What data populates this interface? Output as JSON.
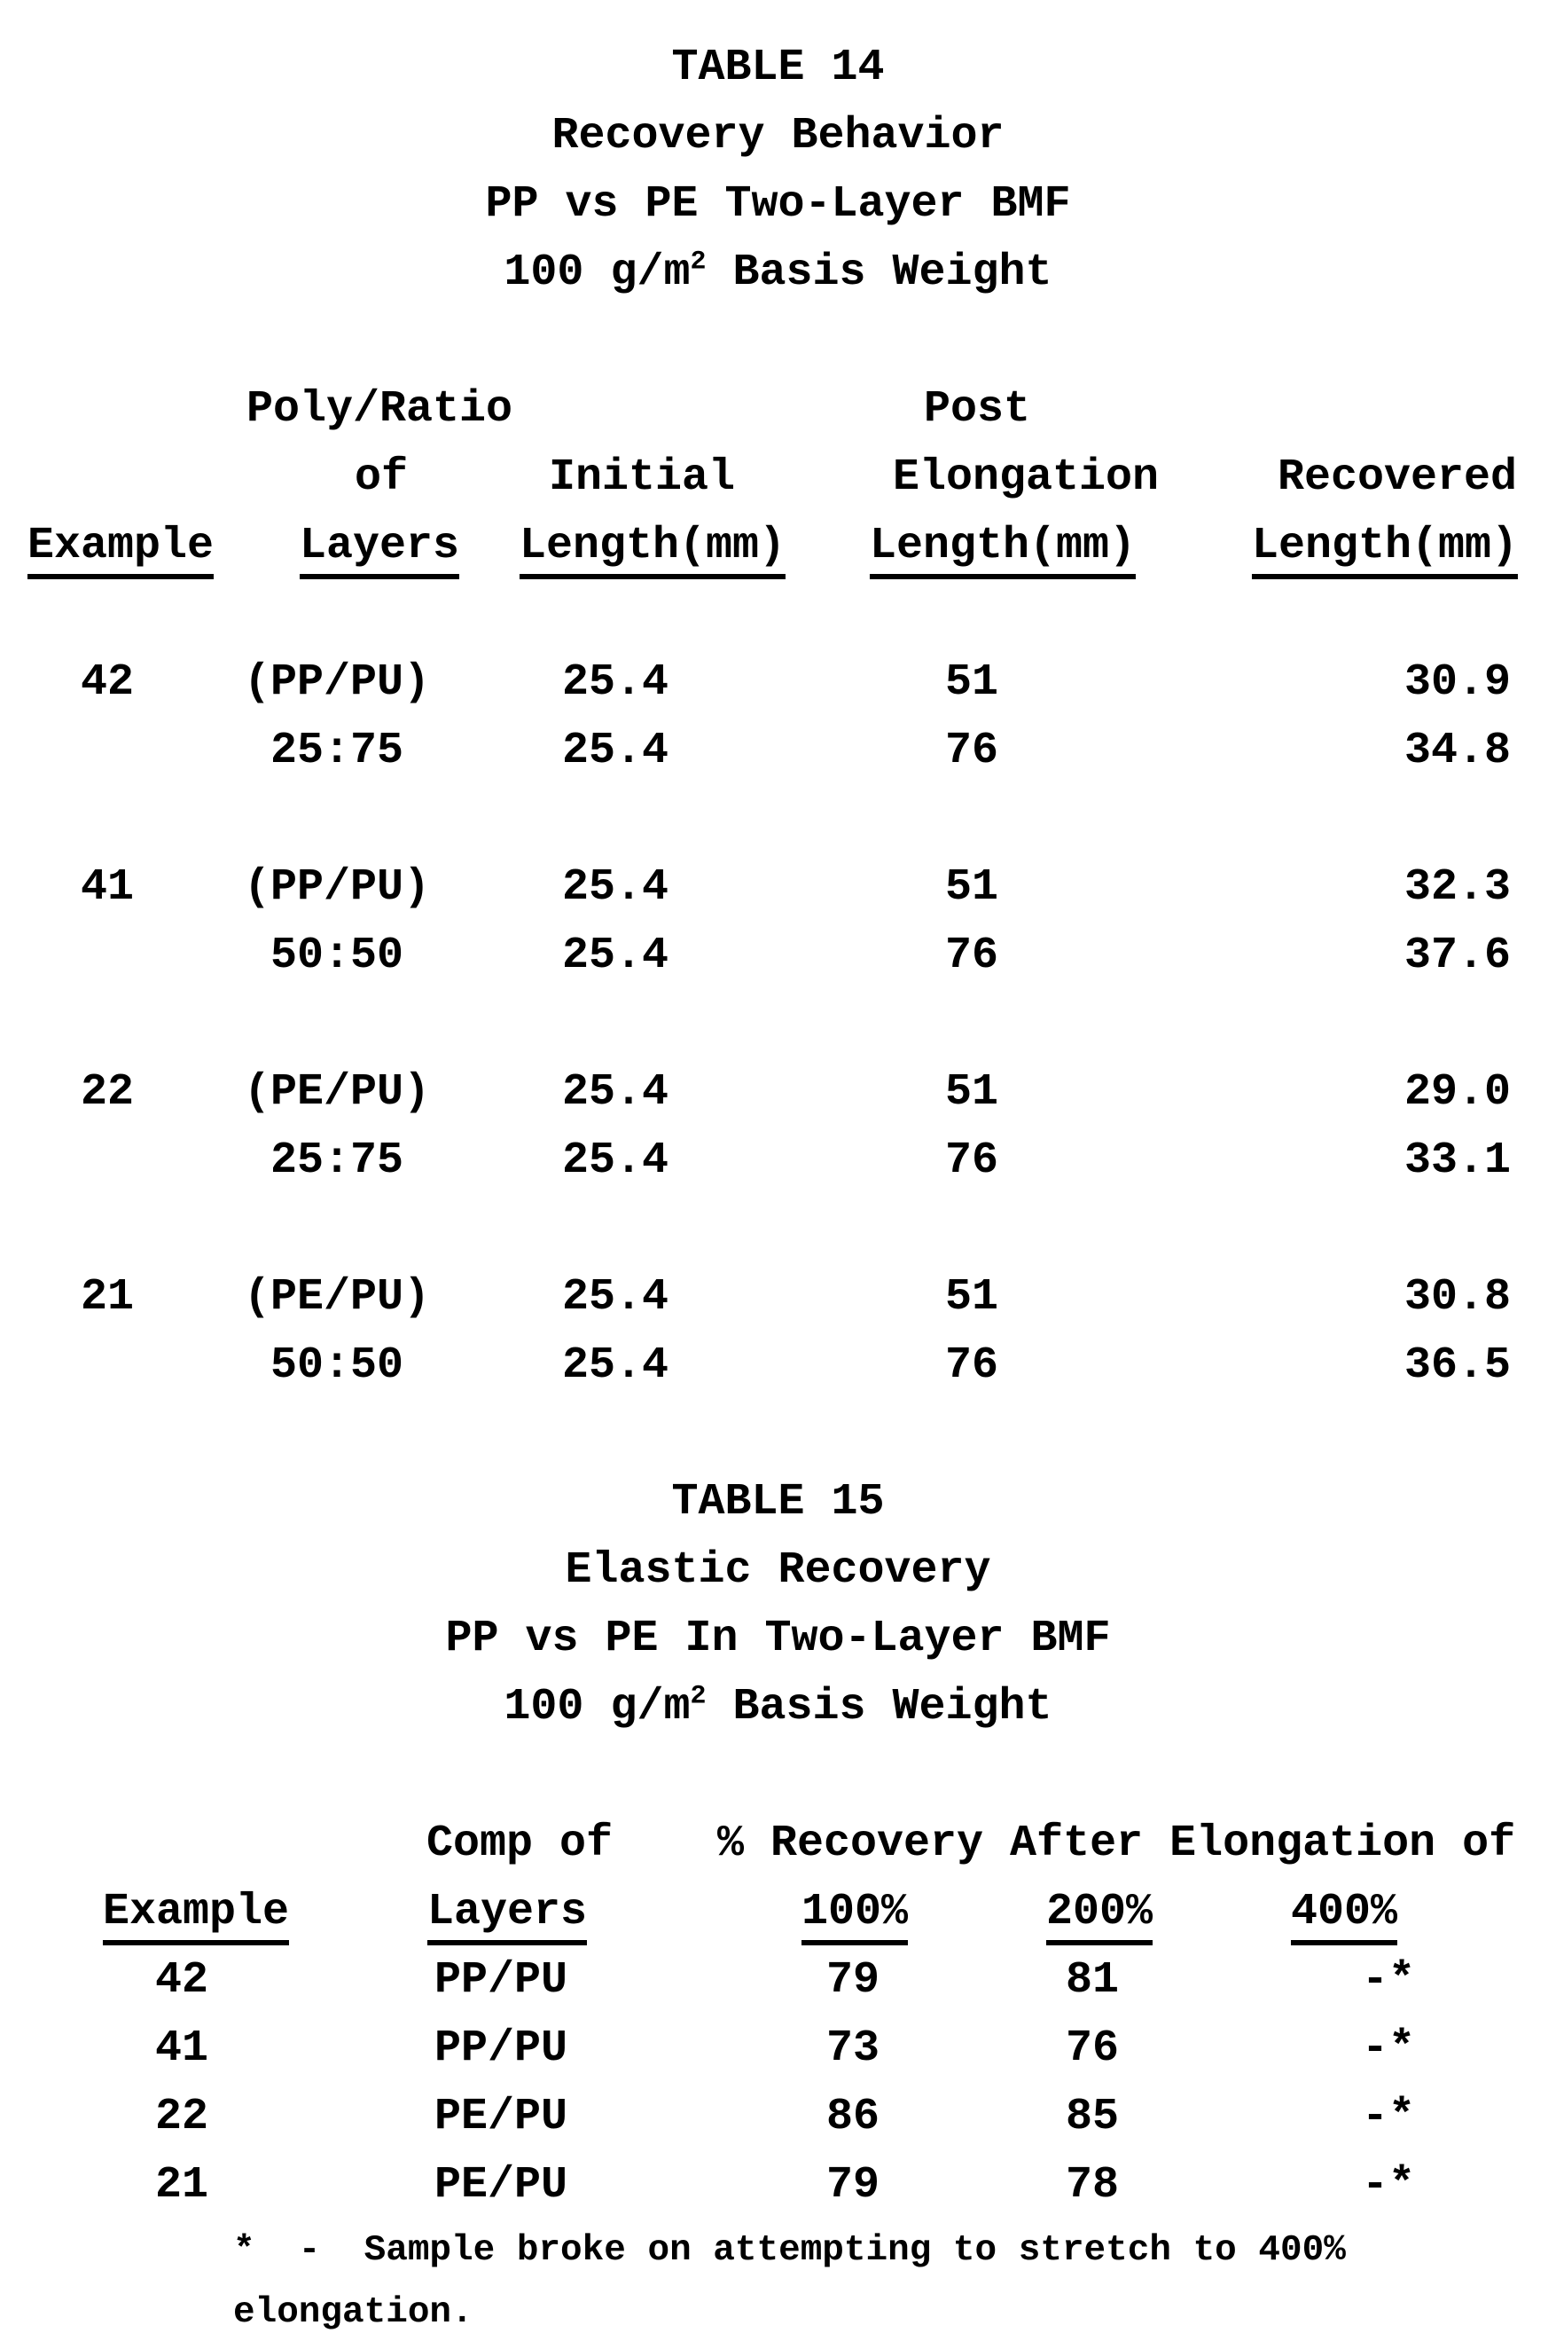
{
  "table14": {
    "title": "TABLE 14",
    "subtitle1": "Recovery Behavior",
    "subtitle2": "PP vs PE Two-Layer BMF",
    "basis_weight_prefix": "100 g/m",
    "basis_weight_sup": "2",
    "basis_weight_suffix": " Basis Weight",
    "headers": {
      "poly_ratio": "Poly/Ratio",
      "of": "of",
      "post": "Post",
      "initial": "Initial",
      "elongation": "Elongation",
      "recovered": "Recovered",
      "example": "Example",
      "layers": "Layers",
      "length_mm_initial": "Length(mm)",
      "length_mm_post": "Length(mm)",
      "length_mm_recovered": "Length(mm)"
    },
    "groups": [
      {
        "example": "42",
        "layers": "(PP/PU)",
        "ratio": "25:75",
        "row1": {
          "initial": "25.4",
          "post": "51",
          "recovered": "30.9"
        },
        "row2": {
          "initial": "25.4",
          "post": "76",
          "recovered": "34.8"
        }
      },
      {
        "example": "41",
        "layers": "(PP/PU)",
        "ratio": "50:50",
        "row1": {
          "initial": "25.4",
          "post": "51",
          "recovered": "32.3"
        },
        "row2": {
          "initial": "25.4",
          "post": "76",
          "recovered": "37.6"
        }
      },
      {
        "example": "22",
        "layers": "(PE/PU)",
        "ratio": "25:75",
        "row1": {
          "initial": "25.4",
          "post": "51",
          "recovered": "29.0"
        },
        "row2": {
          "initial": "25.4",
          "post": "76",
          "recovered": "33.1"
        }
      },
      {
        "example": "21",
        "layers": "(PE/PU)",
        "ratio": "50:50",
        "row1": {
          "initial": "25.4",
          "post": "51",
          "recovered": "30.8"
        },
        "row2": {
          "initial": "25.4",
          "post": "76",
          "recovered": "36.5"
        }
      }
    ]
  },
  "table15": {
    "title": "TABLE 15",
    "subtitle1": "Elastic Recovery",
    "subtitle2": "PP vs PE In Two-Layer BMF",
    "basis_weight_prefix": "100 g/m",
    "basis_weight_sup": "2",
    "basis_weight_suffix": " Basis Weight",
    "headers": {
      "comp_of": "Comp of",
      "recovery_after": "% Recovery After Elongation of",
      "example": "Example",
      "layers": "Layers",
      "p100": "100%",
      "p200": "200%",
      "p400": "400%"
    },
    "rows": [
      {
        "example": "42",
        "layers": "PP/PU",
        "r100": "79",
        "r200": "81",
        "r400": "-*"
      },
      {
        "example": "41",
        "layers": "PP/PU",
        "r100": "73",
        "r200": "76",
        "r400": "-*"
      },
      {
        "example": "22",
        "layers": "PE/PU",
        "r100": "86",
        "r200": "85",
        "r400": "-*"
      },
      {
        "example": "21",
        "layers": "PE/PU",
        "r100": "79",
        "r200": "78",
        "r400": "-*"
      }
    ],
    "footnote_line1": "*  -  Sample broke on attempting to stretch to 400%",
    "footnote_line2": "elongation."
  }
}
